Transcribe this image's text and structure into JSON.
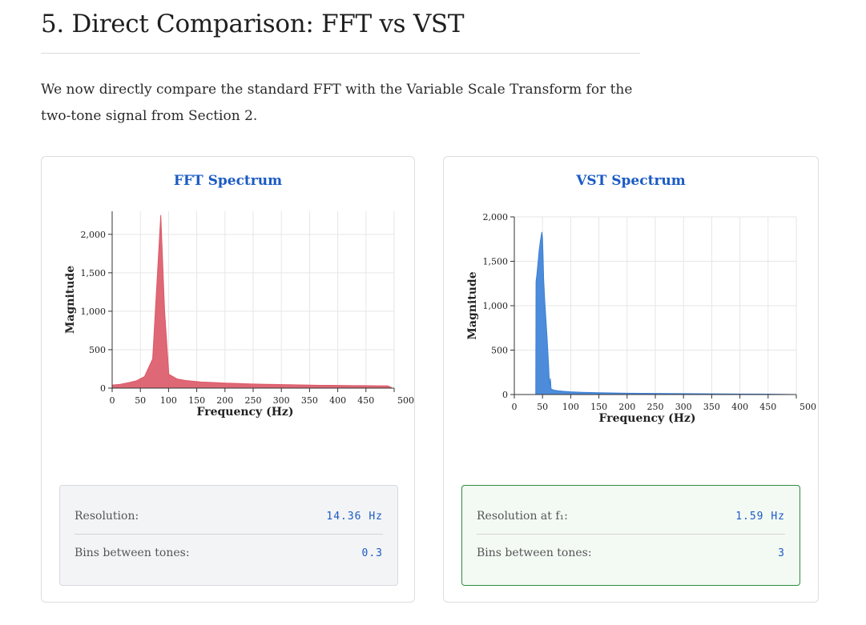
{
  "section": {
    "title": "5. Direct Comparison: FFT vs VST",
    "intro": "We now directly compare the standard FFT with the Variable Scale Transform for the two-tone signal from Section 2."
  },
  "colors": {
    "fft": "#dc5867",
    "vst": "#3a7fd6",
    "title_blue": "#1a5bc4"
  },
  "chart_data": [
    {
      "type": "area",
      "title": "FFT Spectrum",
      "xlabel": "Frequency (Hz)",
      "ylabel": "Magnitude",
      "xlim": [
        0,
        500
      ],
      "ylim": [
        0,
        2300
      ],
      "xticks": [
        0,
        50,
        100,
        150,
        200,
        250,
        300,
        350,
        400,
        450,
        500
      ],
      "yticks": [
        0,
        500,
        1000,
        1500,
        2000
      ],
      "grid": true,
      "series": [
        {
          "color": "#dc5867",
          "x": [
            0,
            14.36,
            28.7,
            43.1,
            57.4,
            71.8,
            86.2,
            93,
            100.5,
            114.9,
            129.2,
            143.6,
            158,
            172.3,
            186.7,
            201,
            215.4,
            229.8,
            244.1,
            258.5,
            272.9,
            287.2,
            301.6,
            315.9,
            330.3,
            344.7,
            359,
            373.4,
            387.8,
            402.1,
            416.5,
            430.8,
            445.2,
            459.6,
            473.9,
            488.3,
            495
          ],
          "y": [
            40,
            50,
            70,
            95,
            150,
            380,
            2250,
            1000,
            180,
            120,
            100,
            90,
            80,
            75,
            70,
            65,
            62,
            58,
            55,
            52,
            50,
            48,
            46,
            44,
            42,
            40,
            38,
            37,
            36,
            35,
            34,
            33,
            32,
            31,
            30,
            30,
            10
          ]
        }
      ]
    },
    {
      "type": "area",
      "title": "VST Spectrum",
      "xlabel": "Frequency (Hz)",
      "ylabel": "Magnitude",
      "xlim": [
        0,
        500
      ],
      "ylim": [
        0,
        2000
      ],
      "xticks": [
        0,
        50,
        100,
        150,
        200,
        250,
        300,
        350,
        400,
        450,
        500
      ],
      "yticks": [
        0,
        500,
        1000,
        1500,
        2000
      ],
      "grid": true,
      "series": [
        {
          "color": "#3a7fd6",
          "x": [
            38,
            38.5,
            40,
            42,
            44,
            46,
            48,
            49,
            50,
            51,
            52,
            54,
            56,
            58,
            60,
            61,
            62,
            63,
            64,
            65,
            66,
            68,
            70,
            75,
            80,
            90,
            100,
            120,
            150,
            200,
            250,
            300,
            350,
            400,
            450,
            500
          ],
          "y": [
            0,
            1270,
            1350,
            1480,
            1620,
            1720,
            1800,
            1830,
            1760,
            1550,
            1300,
            1050,
            850,
            650,
            420,
            300,
            160,
            110,
            180,
            70,
            60,
            55,
            50,
            45,
            40,
            35,
            30,
            25,
            20,
            15,
            12,
            10,
            8,
            6,
            5,
            0
          ]
        }
      ]
    }
  ],
  "panels": {
    "fft": {
      "metrics": [
        {
          "label": "Resolution:",
          "value": "14.36 Hz"
        },
        {
          "label": "Bins between tones:",
          "value": "0.3"
        }
      ]
    },
    "vst": {
      "metrics": [
        {
          "label": "Resolution at f₁:",
          "value": "1.59 Hz"
        },
        {
          "label": "Bins between tones:",
          "value": "3"
        }
      ]
    }
  }
}
